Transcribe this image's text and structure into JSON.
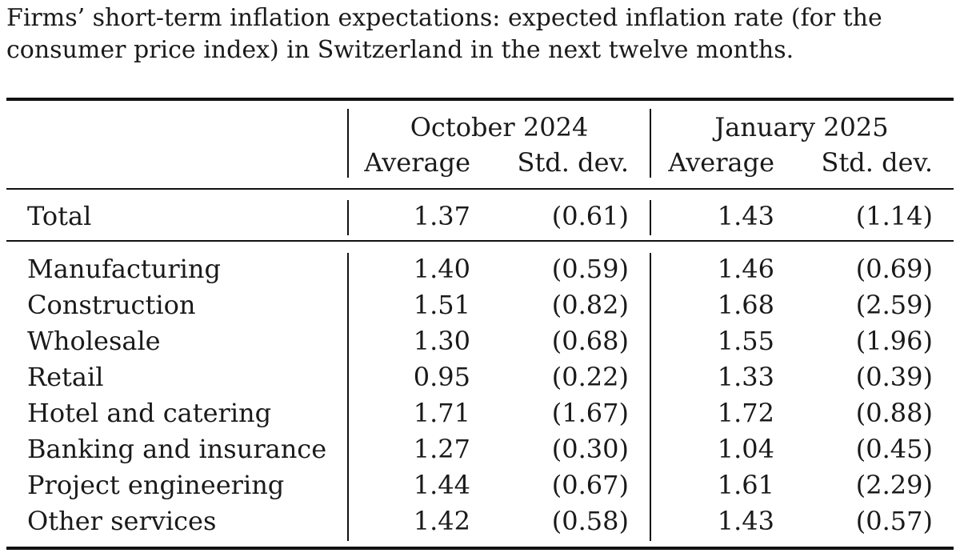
{
  "caption": "Firms’ short-term inflation expectations: expected inflation rate (for the consumer price index) in Switzerland in the next twelve months.",
  "header": {
    "period1": "October 2024",
    "period2": "January 2025",
    "col_average": "Average",
    "col_stddev": "Std. dev."
  },
  "total": {
    "label": "Total",
    "oct_avg": "1.37",
    "oct_sd": "(0.61)",
    "jan_avg": "1.43",
    "jan_sd": "(1.14)"
  },
  "rows": [
    {
      "label": "Manufacturing",
      "oct_avg": "1.40",
      "oct_sd": "(0.59)",
      "jan_avg": "1.46",
      "jan_sd": "(0.69)"
    },
    {
      "label": "Construction",
      "oct_avg": "1.51",
      "oct_sd": "(0.82)",
      "jan_avg": "1.68",
      "jan_sd": "(2.59)"
    },
    {
      "label": "Wholesale",
      "oct_avg": "1.30",
      "oct_sd": "(0.68)",
      "jan_avg": "1.55",
      "jan_sd": "(1.96)"
    },
    {
      "label": "Retail",
      "oct_avg": "0.95",
      "oct_sd": "(0.22)",
      "jan_avg": "1.33",
      "jan_sd": "(0.39)"
    },
    {
      "label": "Hotel and catering",
      "oct_avg": "1.71",
      "oct_sd": "(1.67)",
      "jan_avg": "1.72",
      "jan_sd": "(0.88)"
    },
    {
      "label": "Banking and insurance",
      "oct_avg": "1.27",
      "oct_sd": "(0.30)",
      "jan_avg": "1.04",
      "jan_sd": "(0.45)"
    },
    {
      "label": "Project engineering",
      "oct_avg": "1.44",
      "oct_sd": "(0.67)",
      "jan_avg": "1.61",
      "jan_sd": "(2.29)"
    },
    {
      "label": "Other services",
      "oct_avg": "1.42",
      "oct_sd": "(0.58)",
      "jan_avg": "1.43",
      "jan_sd": "(0.57)"
    }
  ]
}
